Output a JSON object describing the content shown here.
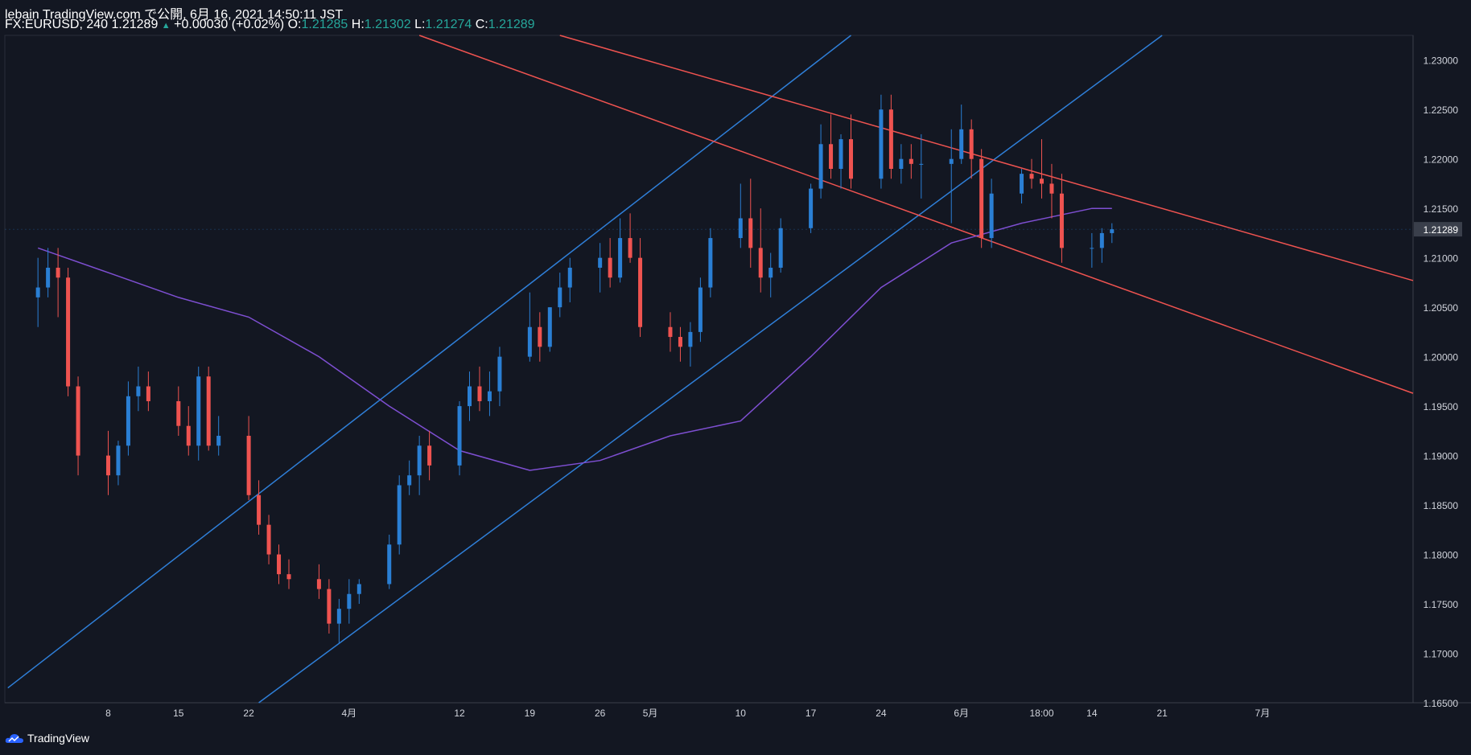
{
  "header": {
    "published": "lebain TradingView.com で公開, 6月 16, 2021 14:50:11 JST",
    "symbol": "FX:EURUSD, 240",
    "last": "1.21289",
    "change": "+0.00030 (+0.02%)",
    "o_label": "O:",
    "o": "1.21285",
    "h_label": "H:",
    "h": "1.21302",
    "l_label": "L:",
    "l": "1.21274",
    "c_label": "C:",
    "c": "1.21289"
  },
  "brand": {
    "name": "TradingView"
  },
  "colors": {
    "up": "#2a7fd4",
    "down": "#ef5350",
    "ma": "#7e4fd2",
    "channel_up": "#2f7fd8",
    "channel_down": "#ef5350",
    "bg": "#131722"
  },
  "chart_data": {
    "type": "line",
    "symbol": "EURUSD",
    "interval": "240",
    "ylim": [
      1.165,
      1.2325
    ],
    "y_ticks": [
      "1.23000",
      "1.22500",
      "1.22000",
      "1.21500",
      "1.21000",
      "1.20500",
      "1.20000",
      "1.19500",
      "1.19000",
      "1.18500",
      "1.18000",
      "1.17500",
      "1.17000",
      "1.16500"
    ],
    "x_ticks": [
      "8",
      "15",
      "22",
      "4月",
      "12",
      "19",
      "26",
      "5月",
      "10",
      "17",
      "24",
      "6月",
      "18:00",
      "14",
      "21",
      "7月"
    ],
    "last_price_label": "1.21289",
    "series": [
      {
        "type": "candlestick",
        "x": [
          "Mar 1",
          "Mar 2",
          "Mar 3",
          "Mar 4",
          "Mar 5",
          "Mar 8",
          "Mar 9",
          "Mar 10",
          "Mar 11",
          "Mar 12",
          "Mar 15",
          "Mar 16",
          "Mar 17",
          "Mar 18",
          "Mar 19",
          "Mar 22",
          "Mar 23",
          "Mar 24",
          "Mar 25",
          "Mar 26",
          "Mar 29",
          "Mar 30",
          "Mar 31",
          "Apr 1",
          "Apr 2",
          "Apr 5",
          "Apr 6",
          "Apr 7",
          "Apr 8",
          "Apr 9",
          "Apr 12",
          "Apr 13",
          "Apr 14",
          "Apr 15",
          "Apr 16",
          "Apr 19",
          "Apr 20",
          "Apr 21",
          "Apr 22",
          "Apr 23",
          "Apr 26",
          "Apr 27",
          "Apr 28",
          "Apr 29",
          "Apr 30",
          "May 3",
          "May 4",
          "May 5",
          "May 6",
          "May 7",
          "May 10",
          "May 11",
          "May 12",
          "May 13",
          "May 14",
          "May 17",
          "May 18",
          "May 19",
          "May 20",
          "May 21",
          "May 24",
          "May 25",
          "May 26",
          "May 27",
          "May 28",
          "May 31",
          "Jun 1",
          "Jun 2",
          "Jun 3",
          "Jun 4",
          "Jun 7",
          "Jun 8",
          "Jun 9",
          "Jun 10",
          "Jun 11",
          "Jun 14",
          "Jun 15",
          "Jun 16"
        ],
        "open": [
          1.206,
          1.207,
          1.209,
          1.208,
          1.197,
          1.19,
          1.188,
          1.191,
          1.196,
          1.197,
          1.1955,
          1.193,
          1.191,
          1.198,
          1.191,
          1.192,
          1.186,
          1.183,
          1.18,
          1.178,
          1.1775,
          1.1765,
          1.173,
          1.1745,
          1.176,
          1.177,
          1.181,
          1.187,
          1.188,
          1.191,
          1.189,
          1.195,
          1.197,
          1.1955,
          1.1965,
          1.2,
          1.203,
          1.201,
          1.205,
          1.207,
          1.209,
          1.21,
          1.208,
          1.212,
          1.21,
          1.203,
          1.202,
          1.201,
          1.2025,
          1.207,
          1.212,
          1.214,
          1.211,
          1.208,
          1.209,
          1.213,
          1.217,
          1.2215,
          1.219,
          1.222,
          1.218,
          1.225,
          1.219,
          1.22,
          1.2195,
          1.2195,
          1.22,
          1.223,
          1.22,
          1.212,
          1.2165,
          1.2185,
          1.218,
          1.2175,
          1.2165,
          1.211,
          1.211,
          1.2125
        ],
        "high": [
          1.21,
          1.211,
          1.211,
          1.209,
          1.198,
          1.1925,
          1.1915,
          1.1975,
          1.199,
          1.1985,
          1.197,
          1.195,
          1.199,
          1.199,
          1.194,
          1.194,
          1.1875,
          1.184,
          1.181,
          1.1795,
          1.179,
          1.1775,
          1.1755,
          1.1775,
          1.1775,
          1.182,
          1.188,
          1.1895,
          1.192,
          1.1925,
          1.1955,
          1.1985,
          1.199,
          1.1985,
          1.201,
          1.2065,
          1.2045,
          1.205,
          1.2085,
          1.21,
          1.2115,
          1.212,
          1.214,
          1.2145,
          1.212,
          1.2045,
          1.203,
          1.2035,
          1.208,
          1.213,
          1.2175,
          1.218,
          1.215,
          1.2105,
          1.214,
          1.2175,
          1.2235,
          1.2245,
          1.2225,
          1.2245,
          1.2265,
          1.2265,
          1.2215,
          1.2215,
          1.2225,
          1.223,
          1.2255,
          1.224,
          1.221,
          1.218,
          1.219,
          1.22,
          1.222,
          1.2195,
          1.2185,
          1.2125,
          1.213,
          1.2135
        ],
        "low": [
          1.203,
          1.206,
          1.204,
          1.196,
          1.188,
          1.186,
          1.187,
          1.19,
          1.1945,
          1.1945,
          1.192,
          1.19,
          1.1895,
          1.1905,
          1.19,
          1.1855,
          1.182,
          1.179,
          1.177,
          1.1765,
          1.1755,
          1.172,
          1.171,
          1.173,
          1.175,
          1.1765,
          1.18,
          1.186,
          1.186,
          1.1875,
          1.188,
          1.1935,
          1.1945,
          1.194,
          1.195,
          1.1995,
          1.1995,
          1.2005,
          1.204,
          1.2055,
          1.2065,
          1.207,
          1.2075,
          1.2095,
          1.202,
          1.2005,
          1.1995,
          1.199,
          1.2015,
          1.206,
          1.211,
          1.209,
          1.2065,
          1.206,
          1.2085,
          1.2125,
          1.216,
          1.218,
          1.217,
          1.217,
          1.217,
          1.218,
          1.2175,
          1.218,
          1.216,
          1.2135,
          1.2195,
          1.218,
          1.211,
          1.211,
          1.2155,
          1.217,
          1.216,
          1.214,
          1.2095,
          1.209,
          1.2095,
          1.2115
        ],
        "close": [
          1.207,
          1.209,
          1.208,
          1.197,
          1.19,
          1.188,
          1.191,
          1.196,
          1.197,
          1.1955,
          1.193,
          1.191,
          1.198,
          1.191,
          1.192,
          1.186,
          1.183,
          1.18,
          1.178,
          1.1775,
          1.1765,
          1.173,
          1.1745,
          1.176,
          1.177,
          1.181,
          1.187,
          1.188,
          1.191,
          1.189,
          1.195,
          1.197,
          1.1955,
          1.1965,
          1.2,
          1.203,
          1.201,
          1.205,
          1.207,
          1.209,
          1.21,
          1.208,
          1.212,
          1.21,
          1.203,
          1.202,
          1.201,
          1.2025,
          1.207,
          1.212,
          1.214,
          1.211,
          1.208,
          1.209,
          1.213,
          1.217,
          1.2215,
          1.219,
          1.222,
          1.218,
          1.225,
          1.219,
          1.22,
          1.2195,
          1.2195,
          1.22,
          1.223,
          1.22,
          1.212,
          1.2165,
          1.2185,
          1.218,
          1.2175,
          1.2165,
          1.211,
          1.211,
          1.2125,
          1.21289
        ]
      },
      {
        "type": "line",
        "role": "moving-average",
        "x": [
          "Mar 1",
          "Mar 8",
          "Mar 15",
          "Mar 22",
          "Mar 29",
          "Apr 5",
          "Apr 12",
          "Apr 19",
          "Apr 26",
          "May 3",
          "May 10",
          "May 17",
          "May 24",
          "May 31",
          "Jun 7",
          "Jun 14",
          "Jun 16"
        ],
        "y": [
          1.211,
          1.2085,
          1.206,
          1.204,
          1.2,
          1.195,
          1.1905,
          1.1885,
          1.1895,
          1.192,
          1.1935,
          1.2,
          1.207,
          1.2115,
          1.2135,
          1.215,
          1.215
        ]
      },
      {
        "type": "line",
        "role": "trendline-up-lower",
        "x": [
          "Mar 23",
          "Jun 21"
        ],
        "y": [
          1.165,
          1.2325
        ]
      },
      {
        "type": "line",
        "role": "trendline-up-upper",
        "x": [
          "Feb 26",
          "May 21"
        ],
        "y": [
          1.1665,
          1.2325
        ]
      },
      {
        "type": "line",
        "role": "trendline-down-upper",
        "x": [
          "Apr 22",
          "Jul 16"
        ],
        "y": [
          1.2325,
          1.2077
        ]
      },
      {
        "type": "line",
        "role": "trendline-down-lower",
        "x": [
          "Apr 8",
          "Jul 16"
        ],
        "y": [
          1.2325,
          1.1963
        ]
      }
    ]
  }
}
